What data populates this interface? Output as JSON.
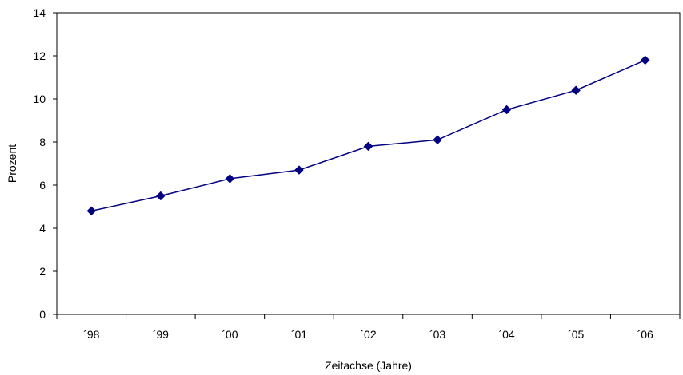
{
  "chart_data": {
    "type": "line",
    "categories": [
      "´98",
      "´99",
      "´00",
      "´01",
      "´02",
      "´03",
      "´04",
      "´05",
      "´06"
    ],
    "series": [
      {
        "values": [
          4.8,
          5.5,
          6.3,
          6.7,
          7.8,
          8.1,
          9.5,
          10.4,
          11.8
        ]
      }
    ],
    "title": "",
    "xlabel": "Zeitachse (Jahre)",
    "ylabel": "Prozent",
    "ylim": [
      0,
      14
    ],
    "yticks": [
      0,
      2,
      4,
      6,
      8,
      10,
      12,
      14
    ],
    "grid": false,
    "line_color": "#000080",
    "marker": "diamond"
  }
}
